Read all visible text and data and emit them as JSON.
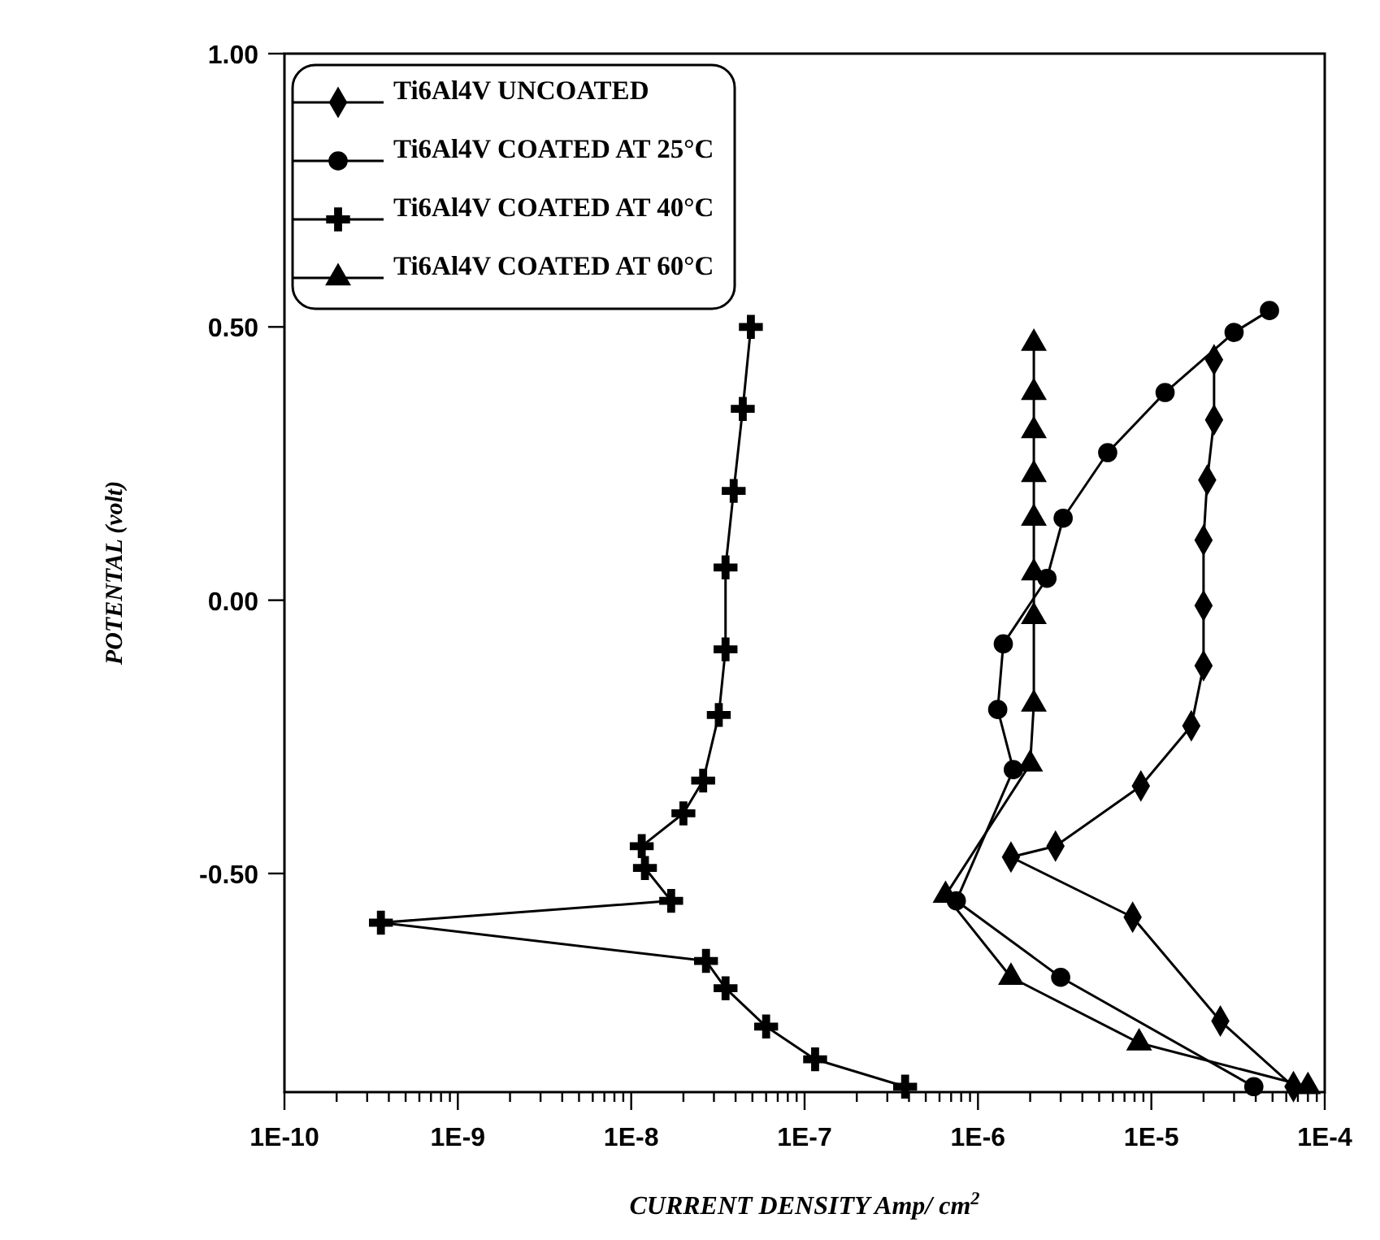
{
  "chart_data": {
    "type": "line",
    "xlabel": "CURRENT DENSITY Amp/ cm$^{2}$",
    "ylabel": "POTENTAL (volt)",
    "log": "x",
    "xlim": [
      1e-10,
      0.0001
    ],
    "ylim": [
      -0.9,
      1.0
    ],
    "xticks": [
      {
        "value": 1e-10,
        "label": "1E-10"
      },
      {
        "value": 2e-10,
        "label": null
      },
      {
        "value": 3e-10,
        "label": null
      },
      {
        "value": 4e-10,
        "label": null
      },
      {
        "value": 5e-10,
        "label": null
      },
      {
        "value": 6e-10,
        "label": null
      },
      {
        "value": 7e-10,
        "label": null
      },
      {
        "value": 8e-10,
        "label": null
      },
      {
        "value": 9e-10,
        "label": null
      },
      {
        "value": 1e-09,
        "label": "1E-9"
      },
      {
        "value": 2e-09,
        "label": null
      },
      {
        "value": 3e-09,
        "label": null
      },
      {
        "value": 4e-09,
        "label": null
      },
      {
        "value": 5e-09,
        "label": null
      },
      {
        "value": 6e-09,
        "label": null
      },
      {
        "value": 7e-09,
        "label": null
      },
      {
        "value": 8e-09,
        "label": null
      },
      {
        "value": 9e-09,
        "label": null
      },
      {
        "value": 1e-08,
        "label": "1E-8"
      },
      {
        "value": 2e-08,
        "label": null
      },
      {
        "value": 3e-08,
        "label": null
      },
      {
        "value": 4e-08,
        "label": null
      },
      {
        "value": 5e-08,
        "label": null
      },
      {
        "value": 6e-08,
        "label": null
      },
      {
        "value": 7e-08,
        "label": null
      },
      {
        "value": 8e-08,
        "label": null
      },
      {
        "value": 9e-08,
        "label": null
      },
      {
        "value": 1e-07,
        "label": "1E-7"
      },
      {
        "value": 2e-07,
        "label": null
      },
      {
        "value": 3e-07,
        "label": null
      },
      {
        "value": 4e-07,
        "label": null
      },
      {
        "value": 5e-07,
        "label": null
      },
      {
        "value": 6e-07,
        "label": null
      },
      {
        "value": 7e-07,
        "label": null
      },
      {
        "value": 8e-07,
        "label": null
      },
      {
        "value": 9e-07,
        "label": null
      },
      {
        "value": 1e-06,
        "label": "1E-6"
      },
      {
        "value": 2e-06,
        "label": null
      },
      {
        "value": 3e-06,
        "label": null
      },
      {
        "value": 4e-06,
        "label": null
      },
      {
        "value": 5e-06,
        "label": null
      },
      {
        "value": 6e-06,
        "label": null
      },
      {
        "value": 7e-06,
        "label": null
      },
      {
        "value": 8e-06,
        "label": null
      },
      {
        "value": 9e-06,
        "label": null
      },
      {
        "value": 1e-05,
        "label": "1E-5"
      },
      {
        "value": 2e-05,
        "label": null
      },
      {
        "value": 3e-05,
        "label": null
      },
      {
        "value": 4e-05,
        "label": null
      },
      {
        "value": 5e-05,
        "label": null
      },
      {
        "value": 6e-05,
        "label": null
      },
      {
        "value": 7e-05,
        "label": null
      },
      {
        "value": 8e-05,
        "label": null
      },
      {
        "value": 9e-05,
        "label": null
      },
      {
        "value": 0.0001,
        "label": "1E-4"
      }
    ],
    "yticks": [
      {
        "value": 1,
        "label": "1.00"
      },
      {
        "value": 0.5,
        "label": "0.50"
      },
      {
        "value": 0,
        "label": "0.00"
      },
      {
        "value": -0.5,
        "label": "-0.50"
      }
    ],
    "grid": false,
    "legend": "top left",
    "line_style": "solid",
    "series": [
      {
        "name": "Ti6Al4V  UNCOATED",
        "color": "#000000",
        "marker": "diamond",
        "x": [
          6.6e-05,
          2.5e-05,
          7.8e-06,
          1.55e-06,
          2.8e-06,
          8.7e-06,
          1.7e-05,
          2e-05,
          2e-05,
          2e-05,
          2.1e-05,
          2.3e-05,
          2.3e-05
        ],
        "values": [
          -0.89,
          -0.77,
          -0.58,
          -0.47,
          -0.45,
          -0.34,
          -0.23,
          -0.12,
          -0.01,
          0.11,
          0.22,
          0.33,
          0.44
        ]
      },
      {
        "name": "Ti6Al4V COATED AT 25°C",
        "color": "#000000",
        "marker": "circle",
        "x": [
          3.9e-05,
          3e-06,
          7.5e-07,
          1.6e-06,
          1.3e-06,
          1.4e-06,
          2.5e-06,
          3.1e-06,
          5.6e-06,
          1.2e-05,
          3e-05,
          4.8e-05
        ],
        "values": [
          -0.89,
          -0.69,
          -0.55,
          -0.31,
          -0.2,
          -0.08,
          0.04,
          0.15,
          0.27,
          0.38,
          0.49,
          0.53
        ]
      },
      {
        "name": "Ti6Al4V COATED AT 40°C",
        "color": "#000000",
        "marker": "cross",
        "x": [
          3.8e-07,
          1.15e-07,
          6e-08,
          3.5e-08,
          2.7e-08,
          3.6e-10,
          1.7e-08,
          1.2e-08,
          1.15e-08,
          2e-08,
          2.6e-08,
          3.2e-08,
          3.5e-08,
          3.5e-08,
          3.9e-08,
          4.4e-08,
          4.9e-08
        ],
        "values": [
          -0.89,
          -0.84,
          -0.78,
          -0.71,
          -0.66,
          -0.59,
          -0.55,
          -0.49,
          -0.45,
          -0.39,
          -0.33,
          -0.21,
          -0.09,
          0.06,
          0.2,
          0.35,
          0.5
        ]
      },
      {
        "name": "Ti6Al4V COATED AT 60°C",
        "color": "#000000",
        "marker": "triangle",
        "x": [
          8e-05,
          8.5e-06,
          1.55e-06,
          6.5e-07,
          2e-06,
          2.1e-06,
          2.1e-06,
          2.1e-06,
          2.1e-06,
          2.1e-06,
          2.1e-06,
          2.1e-06,
          2.1e-06
        ],
        "values": [
          -0.89,
          -0.81,
          -0.69,
          -0.54,
          -0.3,
          -0.19,
          -0.03,
          0.05,
          0.15,
          0.23,
          0.31,
          0.38,
          0.47
        ]
      }
    ]
  }
}
